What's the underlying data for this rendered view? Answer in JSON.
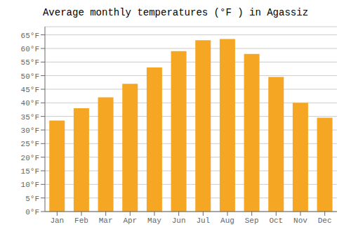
{
  "chart_data": {
    "type": "bar",
    "title": "Average monthly temperatures (°F ) in Agassiz",
    "categories": [
      "Jan",
      "Feb",
      "Mar",
      "Apr",
      "May",
      "Jun",
      "Jul",
      "Aug",
      "Sep",
      "Oct",
      "Nov",
      "Dec"
    ],
    "values": [
      33.5,
      38,
      42,
      47,
      53,
      59,
      63,
      63.5,
      58,
      49.5,
      40,
      34.5
    ],
    "color": "#F5A623",
    "ylim": [
      0,
      68
    ],
    "yticks": [
      {
        "value": 0,
        "label": "0°F"
      },
      {
        "value": 5,
        "label": "5°F"
      },
      {
        "value": 10,
        "label": "10°F"
      },
      {
        "value": 15,
        "label": "15°F"
      },
      {
        "value": 20,
        "label": "20°F"
      },
      {
        "value": 25,
        "label": "25°F"
      },
      {
        "value": 30,
        "label": "30°F"
      },
      {
        "value": 35,
        "label": "35°F"
      },
      {
        "value": 40,
        "label": "40°F"
      },
      {
        "value": 45,
        "label": "45°F"
      },
      {
        "value": 50,
        "label": "50°F"
      },
      {
        "value": 55,
        "label": "55°F"
      },
      {
        "value": 60,
        "label": "60°F"
      },
      {
        "value": 65,
        "label": "65°F"
      }
    ],
    "grid": true
  }
}
